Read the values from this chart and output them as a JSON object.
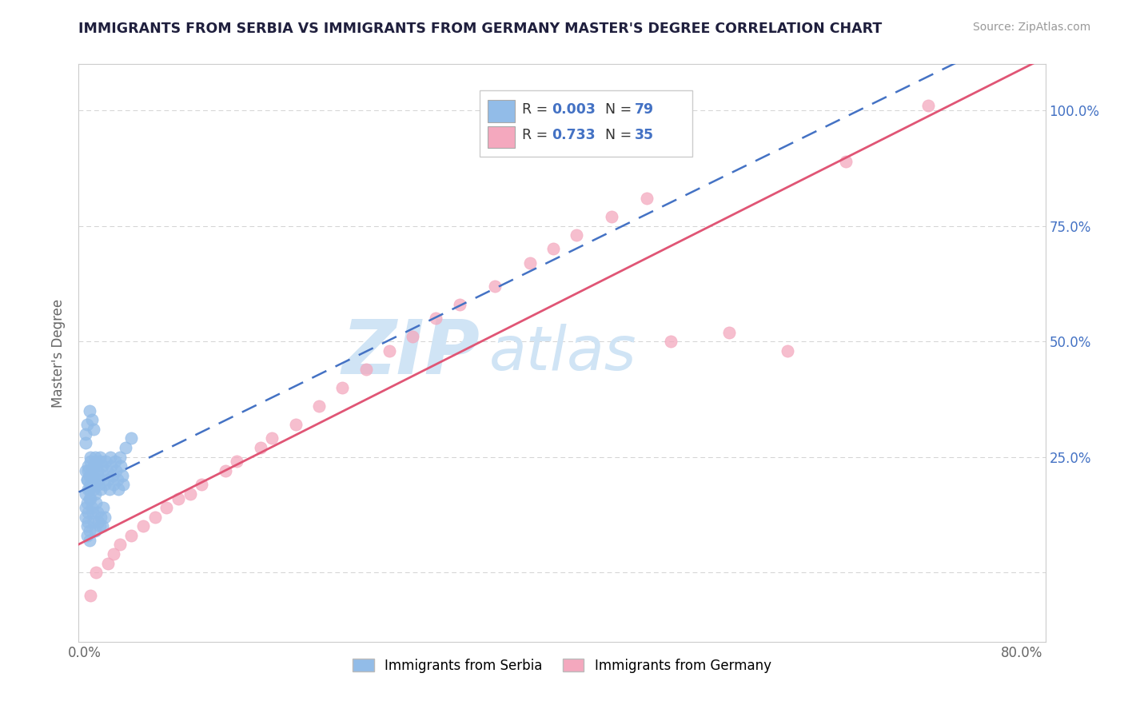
{
  "title": "IMMIGRANTS FROM SERBIA VS IMMIGRANTS FROM GERMANY MASTER'S DEGREE CORRELATION CHART",
  "source_text": "Source: ZipAtlas.com",
  "ylabel": "Master's Degree",
  "R_serbia": "0.003",
  "N_serbia": "79",
  "R_germany": "0.733",
  "N_germany": "35",
  "serbia_color": "#92bce8",
  "germany_color": "#f4a8be",
  "serbia_line_color": "#4472c4",
  "germany_line_color": "#e05575",
  "right_tick_color": "#4472c4",
  "background_color": "#ffffff",
  "grid_color": "#c8c8c8",
  "title_color": "#1f1f3d",
  "source_color": "#999999",
  "watermark_color": "#d0e4f5",
  "serbia_x": [
    0.002,
    0.003,
    0.004,
    0.005,
    0.006,
    0.007,
    0.008,
    0.009,
    0.01,
    0.011,
    0.012,
    0.013,
    0.014,
    0.015,
    0.016,
    0.017,
    0.018,
    0.019,
    0.02,
    0.021,
    0.022,
    0.023,
    0.024,
    0.025,
    0.026,
    0.027,
    0.028,
    0.029,
    0.03,
    0.031,
    0.032,
    0.033,
    0.001,
    0.001,
    0.002,
    0.002,
    0.003,
    0.003,
    0.004,
    0.004,
    0.005,
    0.005,
    0.006,
    0.007,
    0.008,
    0.009,
    0.01,
    0.011,
    0.012,
    0.013,
    0.001,
    0.001,
    0.002,
    0.002,
    0.003,
    0.003,
    0.004,
    0.004,
    0.005,
    0.006,
    0.007,
    0.008,
    0.009,
    0.01,
    0.011,
    0.012,
    0.013,
    0.014,
    0.015,
    0.016,
    0.017,
    0.001,
    0.001,
    0.002,
    0.004,
    0.006,
    0.008,
    0.035,
    0.04
  ],
  "serbia_y": [
    0.2,
    0.22,
    0.18,
    0.25,
    0.21,
    0.19,
    0.23,
    0.17,
    0.24,
    0.22,
    0.2,
    0.25,
    0.18,
    0.23,
    0.21,
    0.19,
    0.24,
    0.22,
    0.2,
    0.18,
    0.25,
    0.23,
    0.21,
    0.19,
    0.24,
    0.22,
    0.2,
    0.18,
    0.25,
    0.23,
    0.21,
    0.19,
    0.22,
    0.17,
    0.2,
    0.15,
    0.23,
    0.18,
    0.21,
    0.16,
    0.24,
    0.19,
    0.22,
    0.2,
    0.18,
    0.25,
    0.23,
    0.21,
    0.19,
    0.24,
    0.14,
    0.12,
    0.1,
    0.08,
    0.13,
    0.11,
    0.09,
    0.07,
    0.16,
    0.14,
    0.13,
    0.11,
    0.09,
    0.15,
    0.13,
    0.11,
    0.1,
    0.12,
    0.1,
    0.14,
    0.12,
    0.3,
    0.28,
    0.32,
    0.35,
    0.33,
    0.31,
    0.27,
    0.29
  ],
  "germany_x": [
    0.005,
    0.01,
    0.02,
    0.025,
    0.03,
    0.04,
    0.05,
    0.06,
    0.07,
    0.08,
    0.09,
    0.1,
    0.12,
    0.13,
    0.15,
    0.16,
    0.18,
    0.2,
    0.22,
    0.24,
    0.26,
    0.28,
    0.3,
    0.32,
    0.35,
    0.38,
    0.4,
    0.42,
    0.45,
    0.48,
    0.5,
    0.55,
    0.6,
    0.65,
    0.72
  ],
  "germany_y": [
    -0.05,
    0.0,
    0.02,
    0.04,
    0.06,
    0.08,
    0.1,
    0.12,
    0.14,
    0.16,
    0.17,
    0.19,
    0.22,
    0.24,
    0.27,
    0.29,
    0.32,
    0.36,
    0.4,
    0.44,
    0.48,
    0.51,
    0.55,
    0.58,
    0.62,
    0.67,
    0.7,
    0.73,
    0.77,
    0.81,
    0.5,
    0.52,
    0.48,
    0.89,
    1.01
  ],
  "xlim_min": -0.005,
  "xlim_max": 0.82,
  "ylim_min": -0.15,
  "ylim_max": 1.1
}
